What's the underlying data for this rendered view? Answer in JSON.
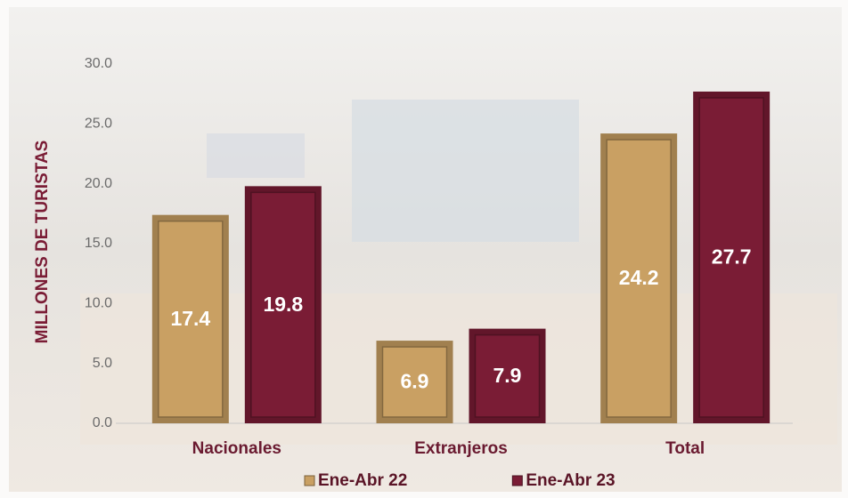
{
  "chart_data": {
    "type": "bar",
    "y_label": "MILLONES DE TURISTAS",
    "categories": [
      "Nacionales",
      "Extranjeros",
      "Total"
    ],
    "series": [
      {
        "name": "Ene-Abr 22",
        "color": "#c9a063",
        "values": [
          17.4,
          6.9,
          24.2
        ]
      },
      {
        "name": "Ene-Abr 23",
        "color": "#7a1c35",
        "values": [
          19.8,
          7.9,
          27.7
        ]
      }
    ],
    "ylim": [
      0,
      30
    ],
    "yticks": [
      {
        "value": 0,
        "label": "0.0"
      },
      {
        "value": 5,
        "label": "5.0"
      },
      {
        "value": 10,
        "label": "10.0"
      },
      {
        "value": 15,
        "label": "15.0"
      },
      {
        "value": 20,
        "label": "20.0"
      },
      {
        "value": 25,
        "label": "25.0"
      },
      {
        "value": 30,
        "label": "30.0"
      }
    ],
    "grid": false
  }
}
